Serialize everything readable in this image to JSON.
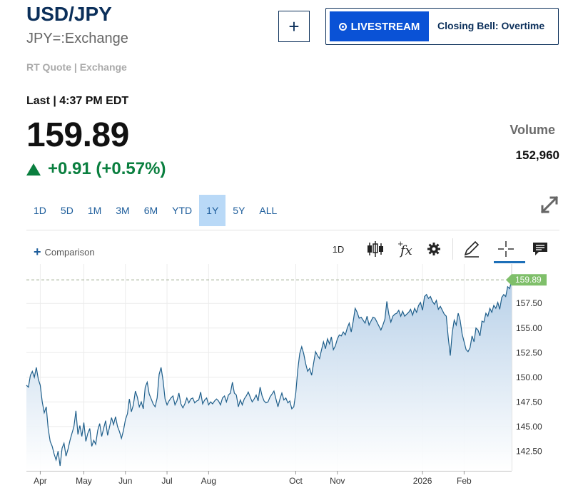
{
  "header": {
    "symbol": "USD/JPY",
    "exchange": "JPY=:Exchange",
    "quote_type": "RT Quote | Exchange",
    "add_label": "+"
  },
  "livestream": {
    "button_label": "LIVESTREAM",
    "show_name": "Closing Bell: Overtime"
  },
  "quote": {
    "last_line": "Last | 4:37 PM EDT",
    "price": "159.89",
    "change": "+0.91 (+0.57%)",
    "volume_label": "Volume",
    "volume_value": "152,960"
  },
  "ranges": [
    "1D",
    "5D",
    "1M",
    "3M",
    "6M",
    "YTD",
    "1Y",
    "5Y",
    "ALL"
  ],
  "active_range": "1Y",
  "toolbar": {
    "comparison_label": "Comparison",
    "interval_label": "1D",
    "icons": [
      "candlestick-icon",
      "function-icon",
      "gear-icon",
      "pencil-icon",
      "crosshair-icon",
      "comment-icon"
    ]
  },
  "colors": {
    "line": "#1f5f8b",
    "area_top": "#b7d0e8",
    "positive": "#0a7f3f",
    "last_badge": "#7fbf6a",
    "accent": "#0a52d6"
  },
  "chart_data": {
    "type": "area",
    "ylim": [
      140.5,
      161.5
    ],
    "yticks": [
      "142.50",
      "145.00",
      "147.50",
      "150.00",
      "152.50",
      "155.00",
      "157.50"
    ],
    "yticks_values": [
      142.5,
      145,
      147.5,
      150,
      152.5,
      155,
      157.5
    ],
    "last_value": 159.89,
    "last_label": "159.89",
    "x_labels": [
      "Apr",
      "May",
      "Jun",
      "Jul",
      "Aug",
      "Oct",
      "Nov",
      "2026",
      "Feb"
    ],
    "x_label_index": [
      7,
      29,
      50,
      71,
      92,
      136,
      157,
      200,
      221
    ],
    "grid": true,
    "y": [
      149.2,
      149.0,
      150.2,
      150.6,
      150.0,
      151.0,
      149.8,
      149.2,
      147.5,
      146.4,
      147.0,
      144.8,
      143.5,
      143.0,
      142.2,
      141.6,
      142.5,
      141.0,
      142.8,
      143.3,
      142.0,
      142.7,
      143.6,
      144.3,
      145.0,
      146.6,
      144.2,
      145.1,
      144.0,
      145.4,
      143.5,
      144.3,
      144.8,
      143.0,
      143.6,
      143.2,
      144.6,
      145.3,
      144.0,
      144.8,
      145.6,
      144.1,
      145.0,
      145.9,
      145.2,
      146.0,
      145.0,
      144.5,
      143.8,
      144.6,
      145.7,
      146.3,
      147.8,
      146.5,
      147.2,
      148.6,
      148.0,
      147.0,
      147.5,
      146.8,
      149.0,
      149.5,
      148.3,
      147.8,
      147.3,
      147.0,
      147.9,
      150.3,
      151.0,
      149.7,
      147.8,
      147.2,
      147.6,
      147.9,
      148.1,
      147.2,
      147.6,
      148.4,
      147.3,
      146.9,
      147.3,
      147.9,
      147.4,
      147.8,
      147.9,
      147.4,
      147.6,
      147.7,
      148.5,
      147.3,
      147.7,
      147.9,
      147.2,
      147.5,
      147.3,
      147.6,
      147.8,
      147.6,
      147.2,
      147.9,
      148.1,
      147.5,
      148.2,
      148.4,
      149.5,
      148.4,
      148.2,
      147.0,
      147.7,
      147.2,
      147.8,
      148.1,
      148.5,
      148.0,
      147.5,
      147.8,
      148.2,
      147.6,
      149.0,
      148.1,
      147.6,
      147.4,
      147.5,
      148.0,
      148.3,
      148.6,
      147.8,
      147.0,
      147.8,
      148.4,
      147.7,
      147.9,
      147.4,
      147.6,
      146.8,
      147.0,
      148.4,
      150.7,
      152.4,
      153.1,
      152.4,
      151.4,
      150.6,
      150.9,
      150.2,
      151.4,
      152.6,
      152.2,
      151.9,
      152.8,
      153.6,
      152.9,
      153.9,
      153.4,
      154.1,
      152.8,
      153.2,
      153.9,
      154.3,
      154.2,
      154.6,
      154.3,
      155.0,
      155.5,
      154.6,
      155.7,
      157.0,
      156.6,
      156.0,
      156.1,
      155.8,
      155.5,
      156.2,
      155.3,
      155.7,
      156.1,
      156.0,
      155.6,
      155.2,
      154.8,
      155.3,
      155.9,
      157.7,
      156.4,
      155.6,
      156.2,
      156.4,
      156.5,
      156.8,
      156.2,
      156.7,
      156.2,
      156.4,
      156.6,
      156.9,
      156.3,
      157.0,
      156.6,
      157.3,
      157.6,
      156.8,
      158.2,
      158.4,
      158.0,
      158.2,
      157.7,
      157.4,
      157.8,
      156.9,
      157.2,
      156.8,
      156.4,
      156.2,
      154.0,
      152.2,
      154.5,
      155.8,
      155.3,
      156.5,
      155.8,
      154.4,
      153.6,
      152.8,
      152.6,
      153.0,
      154.2,
      153.6,
      155.0,
      154.8,
      154.2,
      155.7,
      155.6,
      156.5,
      156.2,
      157.0,
      156.6,
      157.3,
      157.0,
      157.6,
      156.9,
      158.1,
      158.4,
      158.2,
      159.2,
      159.0,
      159.89
    ]
  }
}
